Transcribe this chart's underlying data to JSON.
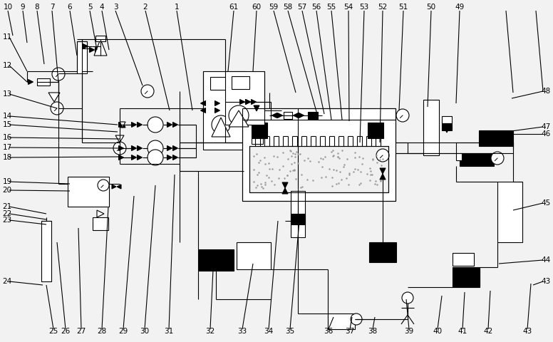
{
  "bg_color": "#f2f2f2",
  "line_color": "#000000",
  "fill_black": "#000000",
  "fill_white": "#ffffff",
  "figsize": [
    7.76,
    4.8
  ],
  "dpi": 100
}
